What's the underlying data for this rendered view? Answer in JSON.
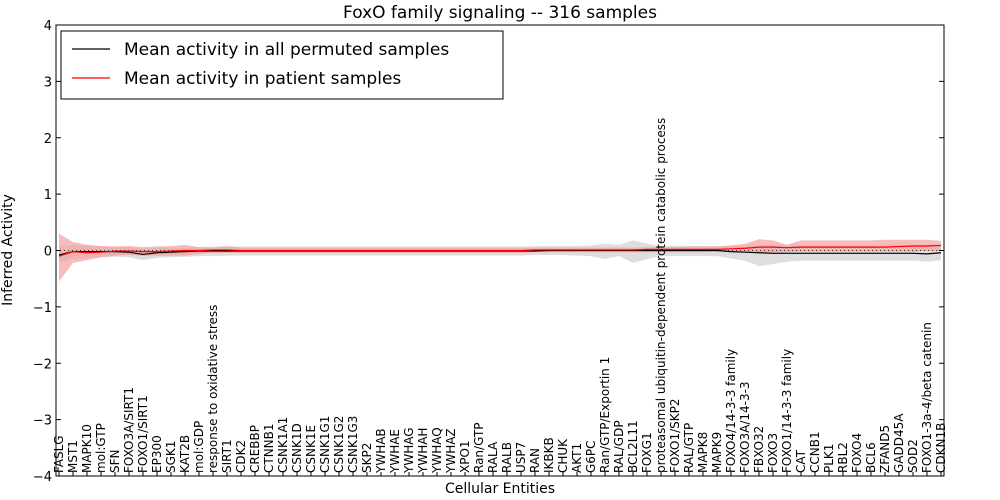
{
  "chart_data": {
    "type": "line",
    "title": "FoxO family signaling -- 316 samples",
    "xlabel": "Cellular Entities",
    "ylabel": "Inferred Activity",
    "ylim": [
      -4,
      4
    ],
    "yticks": [
      4,
      3,
      2,
      1,
      0,
      -1,
      -2,
      -3,
      -4
    ],
    "ytick_labels": [
      "4",
      "3",
      "2",
      "1",
      "0",
      "−1",
      "−2",
      "−3",
      "−4"
    ],
    "legend_position": "upper-left",
    "grid": false,
    "categories": [
      "FASLG",
      "MST1",
      "MAPK10",
      "mol:GTP",
      "SFN",
      "FOXO3A/SIRT1",
      "FOXO1/SIRT1",
      "EP300",
      "SGK1",
      "KAT2B",
      "mol:GDP",
      "response to oxidative stress",
      "SIRT1",
      "CDK2",
      "CREBBP",
      "CTNNB1",
      "CSNK1A1",
      "CSNK1D",
      "CSNK1E",
      "CSNK1G1",
      "CSNK1G2",
      "CSNK1G3",
      "SKP2",
      "YWHAB",
      "YWHAE",
      "YWHAG",
      "YWHAH",
      "YWHAQ",
      "YWHAZ",
      "XPO1",
      "Ran/GTP",
      "RALA",
      "RALB",
      "USP7",
      "RAN",
      "IKBKB",
      "CHUK",
      "AKT1",
      "G6PC",
      "Ran/GTP/Exportin 1",
      "RAL/GDP",
      "BCL2L11",
      "FOXG1",
      "proteasomal ubiquitin-dependent protein catabolic process",
      "FOXO1/SKP2",
      "RAL/GTP",
      "MAPK8",
      "MAPK9",
      "FOXO4/14-3-3 family",
      "FOXO3A/14-3-3",
      "FBXO32",
      "FOXO3",
      "FOXO1/14-3-3 family",
      "CAT",
      "CCNB1",
      "PLK1",
      "RBL2",
      "FOXO4",
      "BCL6",
      "ZFAND5",
      "GADD45A",
      "SOD2",
      "FOXO1-3a-4/beta catenin",
      "CDKN1B"
    ],
    "series": [
      {
        "name": "Mean activity in all permuted samples",
        "color": "#000000",
        "band_color": "#d3d3d3",
        "values": [
          -0.08,
          -0.02,
          -0.02,
          -0.02,
          -0.02,
          -0.03,
          -0.07,
          -0.04,
          -0.03,
          -0.02,
          -0.01,
          -0.01,
          -0.01,
          -0.01,
          -0.01,
          -0.01,
          -0.01,
          -0.01,
          -0.01,
          -0.01,
          -0.01,
          -0.01,
          -0.01,
          -0.01,
          -0.01,
          -0.01,
          -0.01,
          -0.01,
          -0.01,
          -0.01,
          -0.01,
          -0.01,
          -0.01,
          -0.01,
          -0.01,
          0.0,
          0.0,
          0.0,
          0.0,
          0.0,
          0.0,
          0.0,
          0.0,
          0.0,
          0.0,
          0.0,
          0.0,
          0.0,
          -0.02,
          -0.03,
          -0.04,
          -0.05,
          -0.05,
          -0.05,
          -0.05,
          -0.05,
          -0.05,
          -0.05,
          -0.05,
          -0.05,
          -0.05,
          -0.05,
          -0.06,
          -0.04
        ],
        "lower": [
          -0.22,
          -0.15,
          -0.13,
          -0.12,
          -0.11,
          -0.12,
          -0.17,
          -0.13,
          -0.12,
          -0.11,
          -0.1,
          -0.1,
          -0.09,
          -0.09,
          -0.09,
          -0.09,
          -0.09,
          -0.09,
          -0.09,
          -0.09,
          -0.09,
          -0.09,
          -0.09,
          -0.09,
          -0.09,
          -0.09,
          -0.09,
          -0.09,
          -0.09,
          -0.09,
          -0.09,
          -0.09,
          -0.09,
          -0.09,
          -0.08,
          -0.08,
          -0.08,
          -0.09,
          -0.1,
          -0.15,
          -0.1,
          -0.22,
          -0.15,
          -0.1,
          -0.1,
          -0.1,
          -0.1,
          -0.1,
          -0.14,
          -0.18,
          -0.28,
          -0.24,
          -0.2,
          -0.18,
          -0.18,
          -0.18,
          -0.18,
          -0.18,
          -0.18,
          -0.18,
          -0.18,
          -0.18,
          -0.2,
          -0.17
        ],
        "upper": [
          0.06,
          0.1,
          0.09,
          0.08,
          0.06,
          0.06,
          0.04,
          0.05,
          0.05,
          0.05,
          0.06,
          0.07,
          0.07,
          0.07,
          0.07,
          0.07,
          0.07,
          0.07,
          0.07,
          0.07,
          0.07,
          0.07,
          0.07,
          0.07,
          0.07,
          0.07,
          0.07,
          0.07,
          0.07,
          0.07,
          0.07,
          0.07,
          0.07,
          0.07,
          0.08,
          0.08,
          0.08,
          0.08,
          0.09,
          0.12,
          0.1,
          0.18,
          0.12,
          0.08,
          0.08,
          0.08,
          0.08,
          0.08,
          0.08,
          0.08,
          0.1,
          0.1,
          0.1,
          0.1,
          0.1,
          0.1,
          0.1,
          0.1,
          0.1,
          0.1,
          0.1,
          0.1,
          0.1,
          0.1
        ]
      },
      {
        "name": "Mean activity in patient samples",
        "color": "#ff0000",
        "band_color": "#f4a0a0",
        "values": [
          -0.1,
          -0.02,
          -0.04,
          -0.03,
          -0.01,
          -0.01,
          -0.02,
          -0.02,
          -0.01,
          0.0,
          0.0,
          0.01,
          0.01,
          0.0,
          0.0,
          0.0,
          0.0,
          0.0,
          0.0,
          0.0,
          0.0,
          0.0,
          0.0,
          0.0,
          0.0,
          0.0,
          0.0,
          0.0,
          0.0,
          0.0,
          0.0,
          0.0,
          0.0,
          0.0,
          0.01,
          0.01,
          0.01,
          0.01,
          0.01,
          0.01,
          0.01,
          0.01,
          0.02,
          0.02,
          0.02,
          0.02,
          0.02,
          0.02,
          0.03,
          0.04,
          0.06,
          0.06,
          0.05,
          0.06,
          0.06,
          0.06,
          0.06,
          0.06,
          0.06,
          0.06,
          0.07,
          0.08,
          0.08,
          0.09
        ],
        "lower": [
          -0.55,
          -0.22,
          -0.17,
          -0.12,
          -0.09,
          -0.08,
          -0.09,
          -0.09,
          -0.09,
          -0.09,
          -0.06,
          -0.04,
          -0.04,
          -0.04,
          -0.04,
          -0.04,
          -0.04,
          -0.04,
          -0.04,
          -0.04,
          -0.04,
          -0.04,
          -0.04,
          -0.04,
          -0.04,
          -0.04,
          -0.04,
          -0.04,
          -0.04,
          -0.04,
          -0.04,
          -0.04,
          -0.04,
          -0.04,
          -0.03,
          -0.03,
          -0.03,
          -0.03,
          -0.03,
          -0.03,
          -0.03,
          -0.03,
          -0.03,
          -0.03,
          -0.03,
          -0.03,
          -0.03,
          -0.02,
          -0.02,
          -0.02,
          -0.05,
          -0.04,
          -0.03,
          -0.02,
          -0.02,
          -0.02,
          -0.02,
          -0.02,
          -0.02,
          -0.02,
          -0.02,
          -0.02,
          -0.01,
          -0.01
        ],
        "upper": [
          0.3,
          0.15,
          0.1,
          0.08,
          0.07,
          0.08,
          0.06,
          0.07,
          0.08,
          0.1,
          0.06,
          0.05,
          0.08,
          0.05,
          0.05,
          0.05,
          0.05,
          0.05,
          0.05,
          0.05,
          0.05,
          0.05,
          0.05,
          0.05,
          0.05,
          0.05,
          0.05,
          0.05,
          0.05,
          0.05,
          0.05,
          0.05,
          0.05,
          0.05,
          0.05,
          0.05,
          0.05,
          0.05,
          0.05,
          0.05,
          0.05,
          0.05,
          0.06,
          0.06,
          0.06,
          0.07,
          0.07,
          0.07,
          0.09,
          0.12,
          0.2,
          0.18,
          0.1,
          0.18,
          0.18,
          0.18,
          0.18,
          0.18,
          0.18,
          0.19,
          0.19,
          0.19,
          0.19,
          0.17
        ]
      }
    ],
    "reference_line": {
      "y": 0,
      "style": "dotted"
    }
  }
}
